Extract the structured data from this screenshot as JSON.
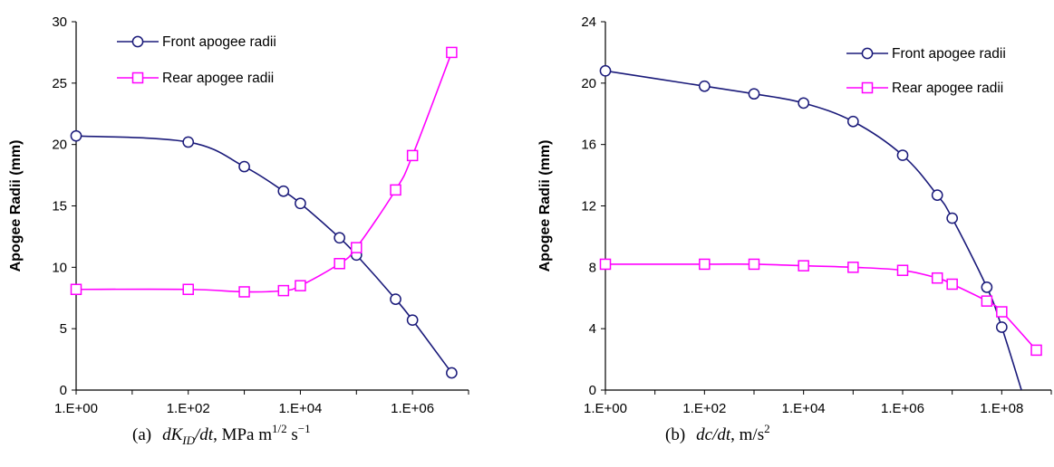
{
  "chart_data": [
    {
      "type": "line",
      "x_scale": "log",
      "xlim": [
        1,
        10000000
      ],
      "ylim": [
        0,
        30
      ],
      "yticks": [
        0,
        5,
        10,
        15,
        20,
        25,
        30
      ],
      "xticks": [
        1,
        100,
        10000,
        1000000
      ],
      "xtick_labels": [
        "1.E+00",
        "1.E+02",
        "1.E+04",
        "1.E+06"
      ],
      "ylabel": "Apogee Radii (mm)",
      "grid": false,
      "legend_position": "top-center",
      "caption": {
        "prefix": "(a)",
        "math": "dK_ID/dt",
        "math_main": "dK",
        "math_sub": "ID",
        "math_tail": "/dt",
        "units_lead": ", MPa m",
        "units_exp1": "1/2",
        "units_mid": " s",
        "units_exp2": "−1"
      },
      "series": [
        {
          "name": "Front apogee radii",
          "marker": "circle",
          "color": "#1a1a7a",
          "x": [
            1,
            100,
            1000,
            5000,
            10000,
            50000,
            100000,
            500000,
            1000000,
            5000000
          ],
          "y": [
            20.7,
            20.2,
            18.2,
            16.2,
            15.2,
            12.4,
            11.0,
            7.4,
            5.7,
            1.4
          ]
        },
        {
          "name": "Rear apogee radii",
          "marker": "square",
          "color": "#ff00ff",
          "x": [
            1,
            100,
            1000,
            5000,
            10000,
            50000,
            100000,
            500000,
            1000000,
            5000000
          ],
          "y": [
            8.2,
            8.2,
            8.0,
            8.1,
            8.5,
            10.3,
            11.6,
            16.3,
            19.1,
            27.5
          ]
        }
      ]
    },
    {
      "type": "line",
      "x_scale": "log",
      "xlim": [
        1,
        1000000000
      ],
      "ylim": [
        0,
        24
      ],
      "yticks": [
        0,
        4,
        8,
        12,
        16,
        20,
        24
      ],
      "xticks": [
        1,
        100,
        10000,
        1000000,
        100000000
      ],
      "xtick_labels": [
        "1.E+00",
        "1.E+02",
        "1.E+04",
        "1.E+06",
        "1.E+08"
      ],
      "ylabel": "Apogee Radii (mm)",
      "grid": false,
      "legend_position": "top-right",
      "caption": {
        "prefix": "(b)",
        "math": "dc/dt",
        "units_lead": ", m/s",
        "units_exp1": "2"
      },
      "series": [
        {
          "name": "Front apogee radii",
          "marker": "circle",
          "color": "#1a1a7a",
          "x": [
            1,
            100,
            1000,
            10000,
            100000,
            1000000,
            5000000,
            10000000,
            50000000,
            100000000
          ],
          "y": [
            20.8,
            19.8,
            19.3,
            18.7,
            17.5,
            15.3,
            12.7,
            11.2,
            6.7,
            4.1
          ],
          "line_extends_to": [
            250000000,
            0
          ]
        },
        {
          "name": "Rear apogee radii",
          "marker": "square",
          "color": "#ff00ff",
          "x": [
            1,
            100,
            1000,
            10000,
            100000,
            1000000,
            5000000,
            10000000,
            50000000,
            100000000,
            500000000
          ],
          "y": [
            8.2,
            8.2,
            8.2,
            8.1,
            8.0,
            7.8,
            7.3,
            6.9,
            5.8,
            5.1,
            2.6
          ]
        }
      ]
    }
  ]
}
